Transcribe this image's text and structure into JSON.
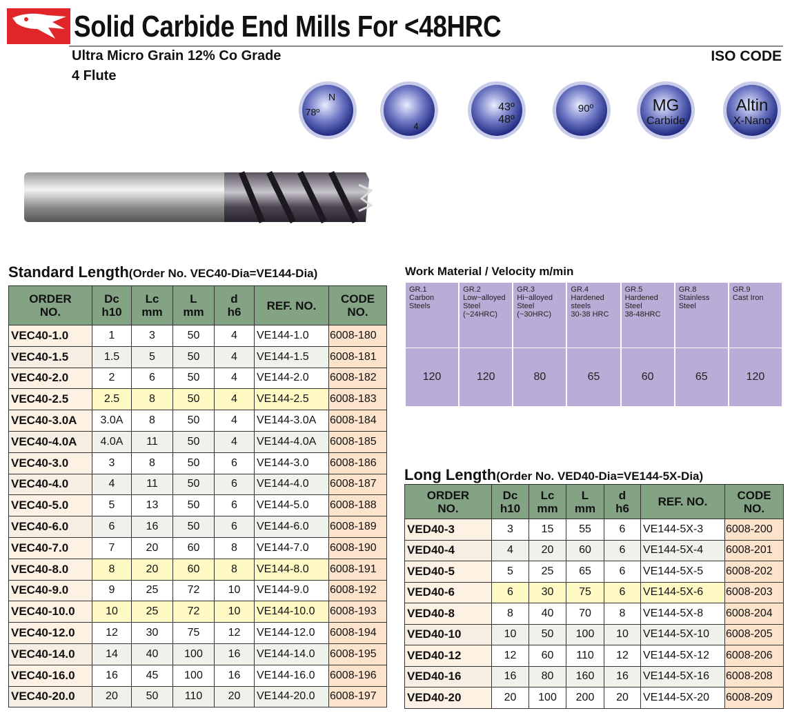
{
  "header": {
    "title": "Solid Carbide End Mills For <48HRC",
    "subtitle_lines": [
      "Ultra Micro Grain 12% Co Grade",
      "4 Flute"
    ],
    "iso_code": "ISO CODE"
  },
  "icons": [
    {
      "lines": [
        "N",
        "78º"
      ]
    },
    {
      "lines": [
        "4"
      ]
    },
    {
      "lines": [
        "43º",
        "48º"
      ]
    },
    {
      "lines": [
        "90º"
      ]
    },
    {
      "lines": [
        "MG",
        "Carbide"
      ]
    },
    {
      "lines": [
        "Altin",
        "X-Nano"
      ]
    }
  ],
  "standard": {
    "title": "Standard Length",
    "note": "(Order No. VEC40-Dia=VE144-Dia)",
    "columns": [
      [
        "ORDER",
        "NO."
      ],
      [
        "Dc",
        "h10"
      ],
      [
        "Lc",
        "mm"
      ],
      [
        "L",
        "mm"
      ],
      [
        "d",
        "h6"
      ],
      [
        "REF. NO."
      ],
      [
        "CODE",
        "NO."
      ]
    ],
    "rows": [
      [
        "VEC40-1.0",
        1,
        3,
        50,
        4,
        "VE144-1.0",
        "6008-180"
      ],
      [
        "VEC40-1.5",
        1.5,
        5,
        50,
        4,
        "VE144-1.5",
        "6008-181"
      ],
      [
        "VEC40-2.0",
        2,
        6,
        50,
        4,
        "VE144-2.0",
        "6008-182"
      ],
      [
        "VEC40-2.5",
        2.5,
        8,
        50,
        4,
        "VE144-2.5",
        "6008-183"
      ],
      [
        "VEC40-3.0A",
        "3.0A",
        8,
        50,
        4,
        "VE144-3.0A",
        "6008-184"
      ],
      [
        "VEC40-4.0A",
        "4.0A",
        11,
        50,
        4,
        "VE144-4.0A",
        "6008-185"
      ],
      [
        "VEC40-3.0",
        3,
        8,
        50,
        6,
        "VE144-3.0",
        "6008-186"
      ],
      [
        "VEC40-4.0",
        4,
        11,
        50,
        6,
        "VE144-4.0",
        "6008-187"
      ],
      [
        "VEC40-5.0",
        5,
        13,
        50,
        6,
        "VE144-5.0",
        "6008-188"
      ],
      [
        "VEC40-6.0",
        6,
        16,
        50,
        6,
        "VE144-6.0",
        "6008-189"
      ],
      [
        "VEC40-7.0",
        7,
        20,
        60,
        8,
        "VE144-7.0",
        "6008-190"
      ],
      [
        "VEC40-8.0",
        8,
        20,
        60,
        8,
        "VE144-8.0",
        "6008-191"
      ],
      [
        "VEC40-9.0",
        9,
        25,
        72,
        10,
        "VE144-9.0",
        "6008-192"
      ],
      [
        "VEC40-10.0",
        10,
        25,
        72,
        10,
        "VE144-10.0",
        "6008-193"
      ],
      [
        "VEC40-12.0",
        12,
        30,
        75,
        12,
        "VE144-12.0",
        "6008-194"
      ],
      [
        "VEC40-14.0",
        14,
        40,
        100,
        16,
        "VE144-14.0",
        "6008-195"
      ],
      [
        "VEC40-16.0",
        16,
        45,
        100,
        16,
        "VE144-16.0",
        "6008-196"
      ],
      [
        "VEC40-20.0",
        20,
        50,
        110,
        20,
        "VE144-20.0",
        "6008-197"
      ]
    ]
  },
  "velocity": {
    "title": "Work Material / Velocity m/min",
    "materials": [
      {
        "lines": [
          "GR.1",
          "Carbon",
          "Steels"
        ],
        "value": 120
      },
      {
        "lines": [
          "GR.2",
          "Low~alloyed",
          "Steel",
          "(~24HRC)"
        ],
        "value": 120
      },
      {
        "lines": [
          "GR.3",
          "Hi~alloyed",
          "Steel",
          "(~30HRC)"
        ],
        "value": 80
      },
      {
        "lines": [
          "GR.4",
          "Hardened",
          "steels",
          "30-38 HRC"
        ],
        "value": 65
      },
      {
        "lines": [
          "GR.5",
          "Hardened",
          "Steel",
          "38-48HRC"
        ],
        "value": 60
      },
      {
        "lines": [
          "GR.8",
          "Stainless",
          "Steel"
        ],
        "value": 65
      },
      {
        "lines": [
          "GR.9",
          "Cast Iron"
        ],
        "value": 120
      }
    ]
  },
  "long": {
    "title": "Long Length",
    "note": "(Order No. VED40-Dia=VE144-5X-Dia)",
    "columns": [
      [
        "ORDER",
        "NO."
      ],
      [
        "Dc",
        "h10"
      ],
      [
        "Lc",
        "mm"
      ],
      [
        "L",
        "mm"
      ],
      [
        "d",
        "h6"
      ],
      [
        "REF. NO."
      ],
      [
        "CODE",
        "NO."
      ]
    ],
    "rows": [
      [
        "VED40-3",
        3,
        15,
        55,
        6,
        "VE144-5X-3",
        "6008-200"
      ],
      [
        "VED40-4",
        4,
        20,
        60,
        6,
        "VE144-5X-4",
        "6008-201"
      ],
      [
        "VED40-5",
        5,
        25,
        65,
        6,
        "VE144-5X-5",
        "6008-202"
      ],
      [
        "VED40-6",
        6,
        30,
        75,
        6,
        "VE144-5X-6",
        "6008-203"
      ],
      [
        "VED40-8",
        8,
        40,
        70,
        8,
        "VE144-5X-8",
        "6008-204"
      ],
      [
        "VED40-10",
        10,
        50,
        100,
        10,
        "VE144-5X-10",
        "6008-205"
      ],
      [
        "VED40-12",
        12,
        60,
        110,
        12,
        "VE144-5X-12",
        "6008-206"
      ],
      [
        "VED40-16",
        16,
        80,
        160,
        16,
        "VE144-5X-16",
        "6008-208"
      ],
      [
        "VED40-20",
        20,
        100,
        200,
        20,
        "VE144-5X-20",
        "6008-209"
      ]
    ]
  }
}
